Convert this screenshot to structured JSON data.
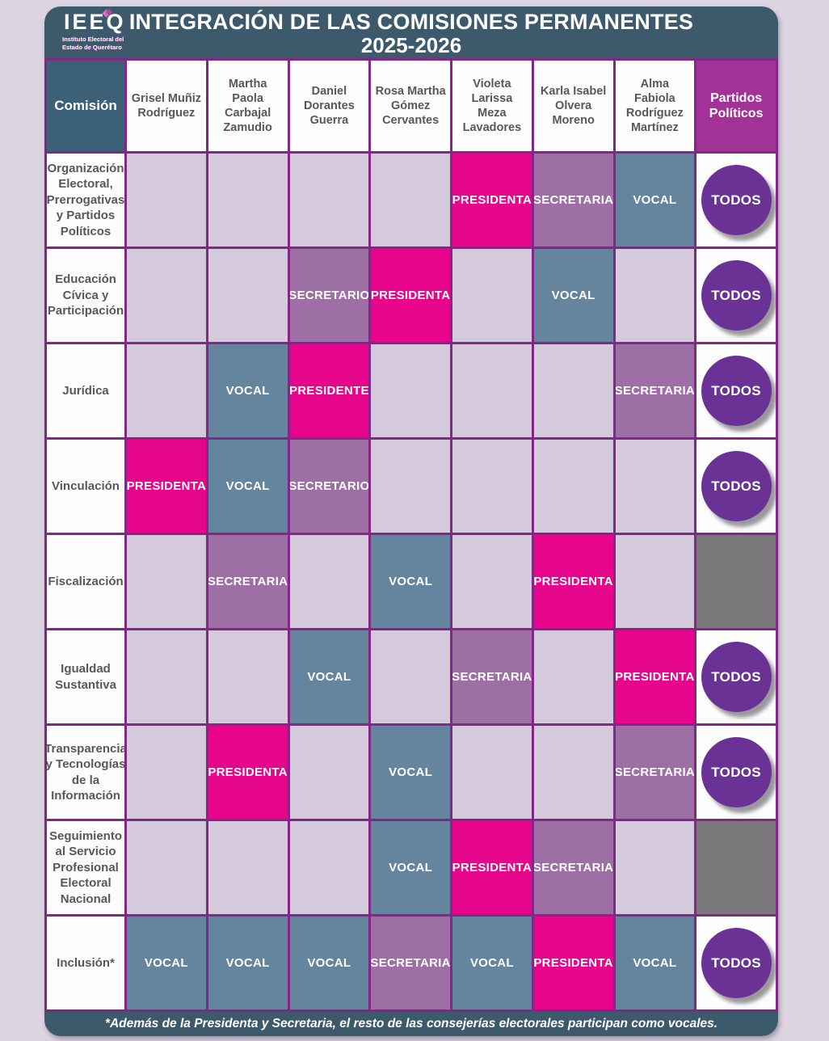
{
  "header": {
    "title_line1": "INTEGRACIÓN DE LAS COMISIONES PERMANENTES",
    "title_line2": "2025-2026",
    "logo": {
      "acronym": "IEEQ",
      "subtitle_line1": "Instituto Electoral del",
      "subtitle_line2": "Estado de Querétaro"
    }
  },
  "table": {
    "corner_label": "Comisión",
    "partidos_label": "Partidos Políticos",
    "members": [
      "Grisel Muñiz Rodríguez",
      "Martha Paola Carbajal Zamudio",
      "Daniel Dorantes Guerra",
      "Rosa Martha Gómez Cervantes",
      "Violeta Larissa Meza Lavadores",
      "Karla Isabel Olvera Moreno",
      "Alma Fabiola Rodríguez Martínez"
    ],
    "rows": [
      {
        "commission": "Organización Electoral, Prerrogativas y Partidos Políticos",
        "roles": [
          null,
          null,
          null,
          null,
          "PRESIDENTA",
          "SECRETARIA",
          "VOCAL"
        ],
        "partidos": "TODOS"
      },
      {
        "commission": "Educación Cívica y Participación",
        "roles": [
          null,
          null,
          "SECRETARIO",
          "PRESIDENTA",
          null,
          "VOCAL",
          null
        ],
        "partidos": "TODOS"
      },
      {
        "commission": "Jurídica",
        "roles": [
          null,
          "VOCAL",
          "PRESIDENTE",
          null,
          null,
          null,
          "SECRETARIA"
        ],
        "partidos": "TODOS"
      },
      {
        "commission": "Vinculación",
        "roles": [
          "PRESIDENTA",
          "VOCAL",
          "SECRETARIO",
          null,
          null,
          null,
          null
        ],
        "partidos": "TODOS"
      },
      {
        "commission": "Fiscalización",
        "roles": [
          null,
          "SECRETARIA",
          null,
          "VOCAL",
          null,
          "PRESIDENTA",
          null
        ],
        "partidos": null
      },
      {
        "commission": "Igualdad Sustantiva",
        "roles": [
          null,
          null,
          "VOCAL",
          null,
          "SECRETARIA",
          null,
          "PRESIDENTA"
        ],
        "partidos": "TODOS"
      },
      {
        "commission": "Transparencia y Tecnologías de la Información",
        "roles": [
          null,
          "PRESIDENTA",
          null,
          "VOCAL",
          null,
          null,
          "SECRETARIA"
        ],
        "partidos": "TODOS"
      },
      {
        "commission": "Seguimiento al Servicio Profesional Electoral Nacional",
        "roles": [
          null,
          null,
          null,
          "VOCAL",
          "PRESIDENTA",
          "SECRETARIA",
          null
        ],
        "partidos": null
      },
      {
        "commission": "Inclusión*",
        "roles": [
          "VOCAL",
          "VOCAL",
          "VOCAL",
          "SECRETARIA",
          "VOCAL",
          "PRESIDENTA",
          "VOCAL"
        ],
        "partidos": "TODOS"
      }
    ]
  },
  "footer": {
    "note": "*Además de la Presidenta y Secretaria, el resto de las consejerías electorales participan como vocales."
  },
  "colors": {
    "page_background": "#dcd4e0",
    "container_teal": "#3d5a6c",
    "comision_header_bg": "#3c6078",
    "border_purple": "#822687",
    "empty_cell": "#d4cadb",
    "presidenta_pink": "#e7068b",
    "secretaria_mauve": "#9e6fa5",
    "vocal_slate": "#64859d",
    "todos_purple": "#6a3294",
    "partidos_header_purple": "#a23295",
    "gray_cell": "#7a787b",
    "header_text_gray": "#57585a",
    "logo_icon_pink": "#e06ac4",
    "logo_icon_purple": "#9b4f9e"
  }
}
